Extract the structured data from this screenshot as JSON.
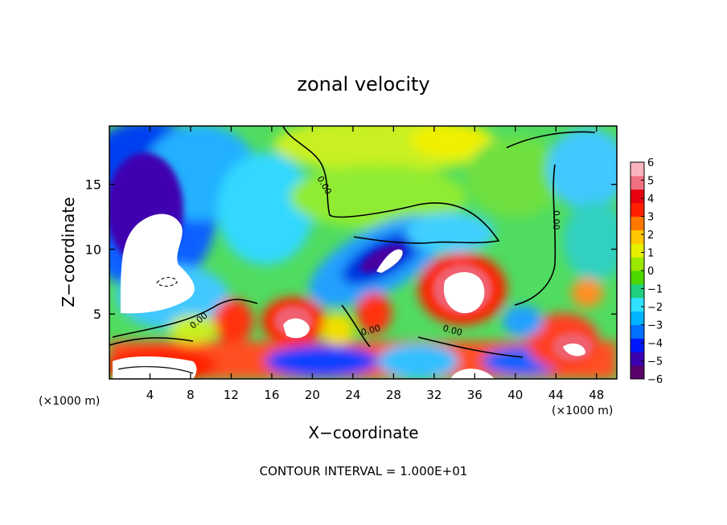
{
  "chart_data": {
    "type": "heatmap",
    "title": "zonal velocity",
    "xlabel": "X−coordinate",
    "ylabel": "Z−coordinate",
    "x_unit_label": "(×1000 m)",
    "x_unit_label_right": "(×1000 m)",
    "xlim": [
      0,
      50
    ],
    "ylim": [
      0,
      19.5
    ],
    "x_ticks": [
      4,
      8,
      12,
      16,
      20,
      24,
      28,
      32,
      36,
      40,
      44,
      48
    ],
    "y_ticks": [
      5,
      10,
      15
    ],
    "colorbar": {
      "min": -6,
      "max": 6,
      "ticks": [
        "6",
        "5",
        "4",
        "3",
        "2",
        "1",
        "0",
        "−1",
        "−2",
        "−3",
        "−4",
        "−5",
        "−6"
      ],
      "colors": [
        "#5a006a",
        "#3b00b0",
        "#0018ff",
        "#0070ff",
        "#00b4ff",
        "#30e0ff",
        "#20d080",
        "#4cd800",
        "#9ae800",
        "#e8f000",
        "#ffc800",
        "#ff7800",
        "#ff2000",
        "#e80010",
        "#f07080",
        "#f8b4bc"
      ]
    },
    "zero_contour_labels": [
      "0.00",
      "0.00",
      "0.00",
      "0.00",
      "0.00"
    ],
    "footer": "CONTOUR INTERVAL = 1.000E+01"
  }
}
